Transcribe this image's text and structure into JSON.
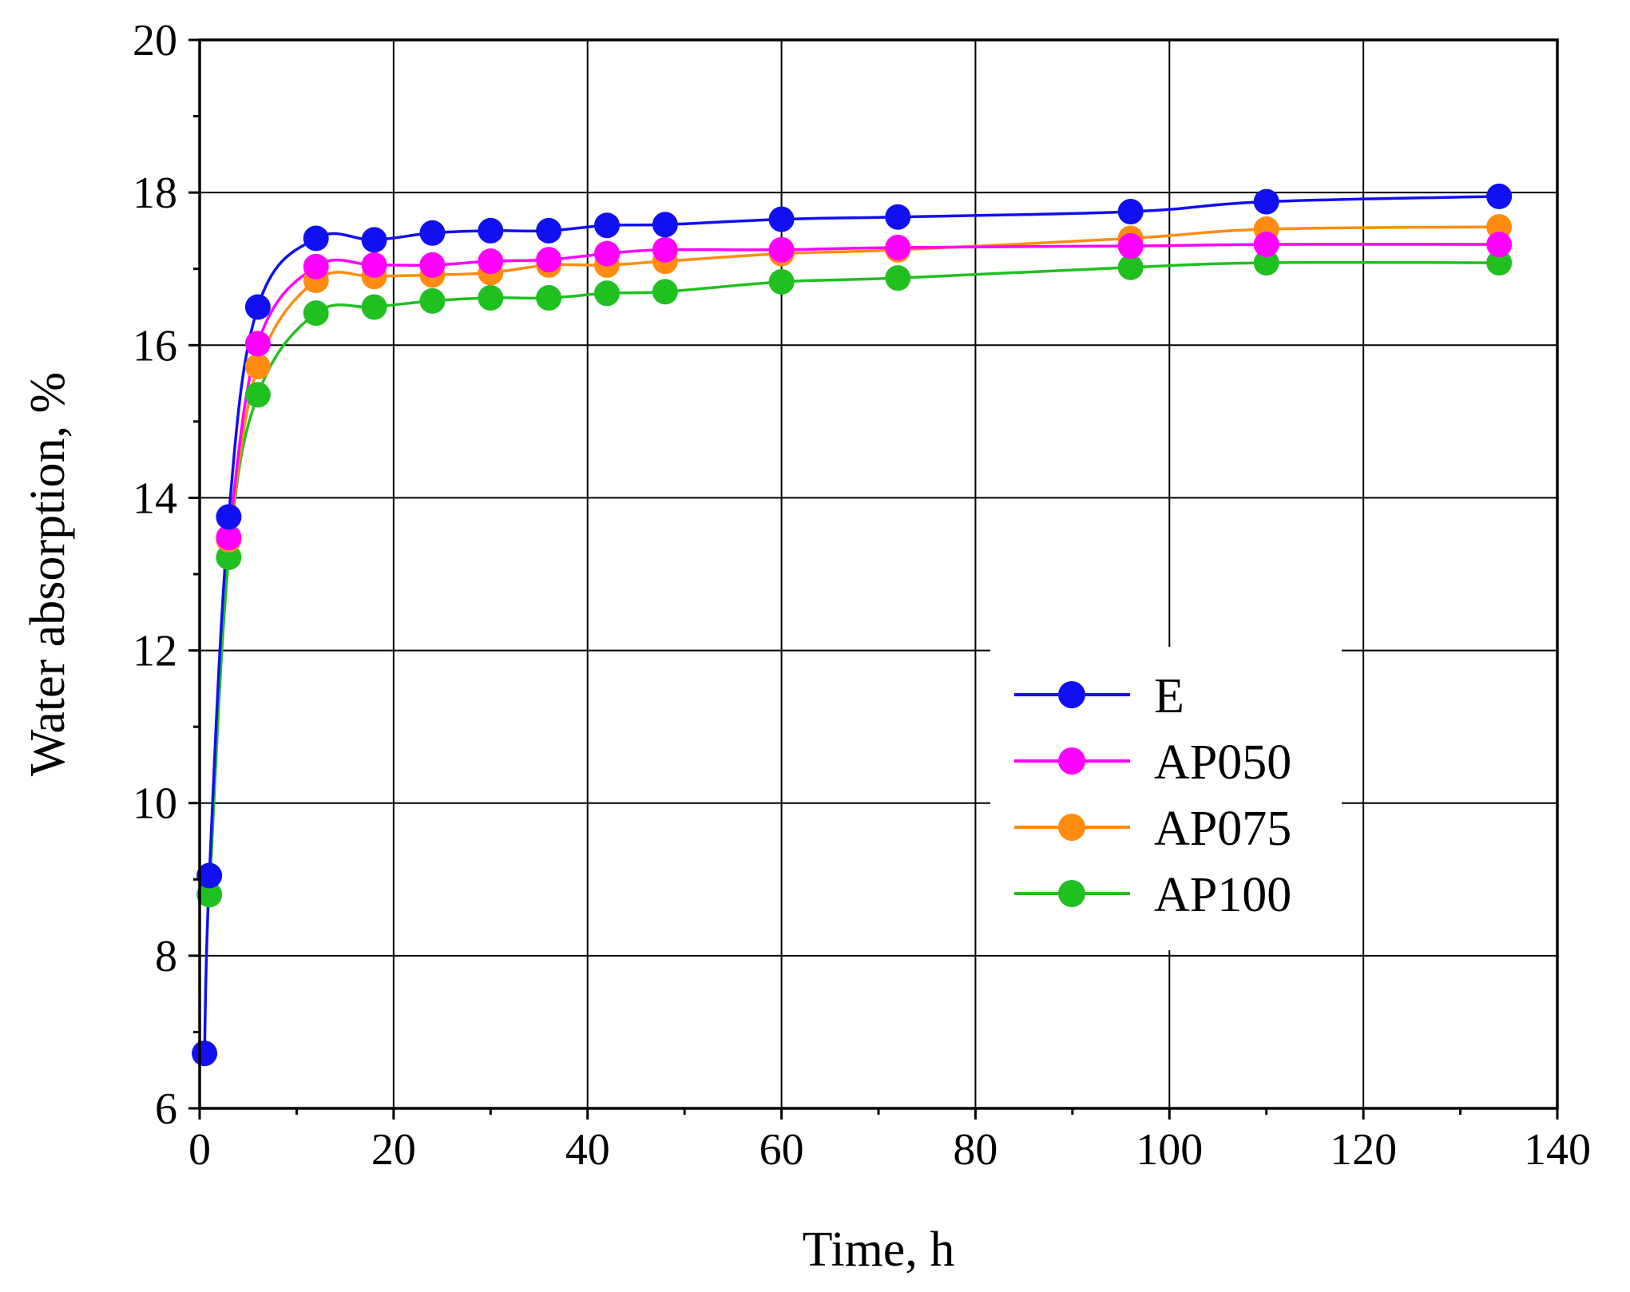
{
  "chart_data": {
    "type": "line",
    "title": "",
    "xlabel": "Time, h",
    "ylabel": "Water absorption, %",
    "xlim": [
      0,
      140
    ],
    "ylim": [
      6,
      20
    ],
    "xticks": [
      0,
      20,
      40,
      60,
      80,
      100,
      120,
      140
    ],
    "yticks": [
      6,
      8,
      10,
      12,
      14,
      16,
      18,
      20
    ],
    "grid": true,
    "legend_position": "center-right",
    "series": [
      {
        "name": "E",
        "color": "#1010f0",
        "x": [
          0.5,
          1,
          3,
          6,
          12,
          18,
          24,
          30,
          36,
          42,
          48,
          60,
          72,
          96,
          110,
          134
        ],
        "y": [
          6.72,
          9.05,
          13.75,
          16.5,
          17.4,
          17.38,
          17.47,
          17.5,
          17.5,
          17.57,
          17.58,
          17.65,
          17.68,
          17.75,
          17.88,
          17.95
        ]
      },
      {
        "name": "AP050",
        "color": "#ff00ff",
        "x": [
          3,
          6,
          12,
          18,
          24,
          30,
          36,
          42,
          48,
          60,
          72,
          96,
          110,
          134
        ],
        "y": [
          13.48,
          16.02,
          17.03,
          17.05,
          17.05,
          17.1,
          17.12,
          17.2,
          17.25,
          17.25,
          17.28,
          17.3,
          17.32,
          17.32
        ]
      },
      {
        "name": "AP075",
        "color": "#ff8c10",
        "x": [
          3,
          6,
          12,
          18,
          24,
          30,
          36,
          42,
          48,
          60,
          72,
          96,
          110,
          134
        ],
        "y": [
          13.45,
          15.72,
          16.85,
          16.9,
          16.92,
          16.95,
          17.05,
          17.05,
          17.1,
          17.2,
          17.25,
          17.4,
          17.52,
          17.55
        ]
      },
      {
        "name": "AP100",
        "color": "#20c020",
        "x": [
          1,
          3,
          6,
          12,
          18,
          24,
          30,
          36,
          42,
          48,
          60,
          72,
          96,
          110,
          134
        ],
        "y": [
          8.8,
          13.22,
          15.35,
          16.42,
          16.5,
          16.58,
          16.62,
          16.62,
          16.68,
          16.7,
          16.83,
          16.88,
          17.02,
          17.08,
          17.08
        ]
      }
    ]
  }
}
